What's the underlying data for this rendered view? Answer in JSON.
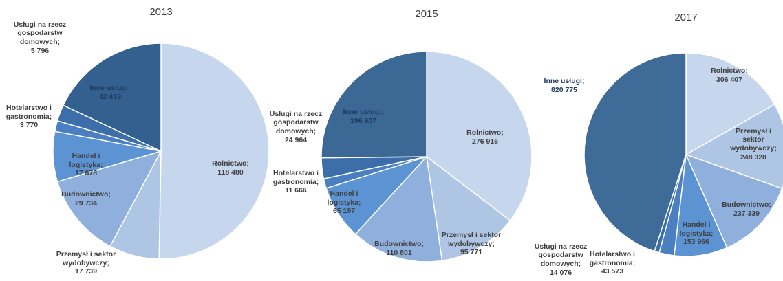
{
  "chart_data": [
    {
      "type": "pie",
      "title": "2013",
      "categories": [
        "Rolnictwo;",
        "Przemysł i sektor wydobywczy;",
        "Budownictwo;",
        "Handel i logistyka;",
        "Hotelarstwo i gastronomia;",
        "Usługi na rzecz gospodarstw domowych;",
        "Inne usługi;"
      ],
      "values": [
        118480,
        17739,
        29734,
        17678,
        3770,
        5796,
        42419
      ],
      "value_labels": [
        "118 480",
        "17 739",
        "29 734",
        "17 678",
        "3 770",
        "5 796",
        "42 419"
      ],
      "colors": [
        "#c6d6ec",
        "#aec5e4",
        "#8fb0dc",
        "#5b93d3",
        "#4a7fc1",
        "#3c6ea9",
        "#33608f"
      ]
    },
    {
      "type": "pie",
      "title": "2015",
      "categories": [
        "Rolnictwo;",
        "Przemysł i sektor wydobywczy;",
        "Budownictwo;",
        "Handel i logistyka;",
        "Hotelarstwo i gastronomia;",
        "Usługi na rzecz gospodarstw domowych;",
        "Inne usługi;"
      ],
      "values": [
        276916,
        95771,
        110801,
        65197,
        11666,
        24964,
        196907
      ],
      "value_labels": [
        "276 916",
        "95 771",
        "110 801",
        "65 197",
        "11 666",
        "24 964",
        "196 907"
      ],
      "colors": [
        "#c6d6ec",
        "#aec5e4",
        "#8fb0dc",
        "#5b93d3",
        "#4a7fc1",
        "#3c6ea9",
        "#3b6895"
      ]
    },
    {
      "type": "pie",
      "title": "2017",
      "categories": [
        "Rolnictwo;",
        "Przemysł i sektor wydobywczy;",
        "Budownictwo;",
        "Handel i logistyka;",
        "Hotelarstwo i gastronomia;",
        "Usługi na rzecz gospodarstw domowych;",
        "Inne usługi;"
      ],
      "values": [
        306407,
        248328,
        237339,
        153966,
        43573,
        14076,
        820775
      ],
      "value_labels": [
        "306 407",
        "248 328",
        "237 339",
        "153 966",
        "43 573",
        "14 076",
        "820 775"
      ],
      "colors": [
        "#c6d6ec",
        "#aec5e4",
        "#8fb0dc",
        "#5b93d3",
        "#4a7fc1",
        "#3c6ea9",
        "#3f6b98"
      ]
    }
  ]
}
